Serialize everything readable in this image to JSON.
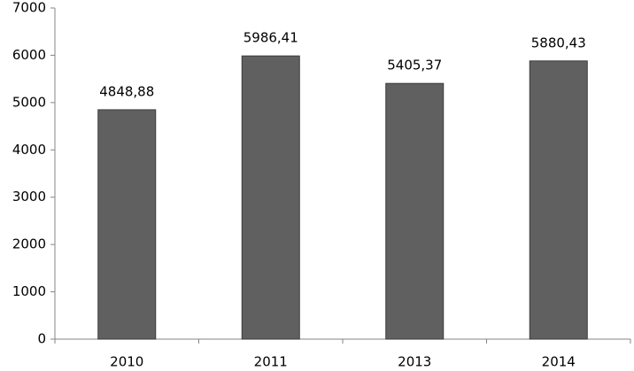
{
  "chart_data": {
    "type": "bar",
    "categories": [
      "2010",
      "2011",
      "2013",
      "2014"
    ],
    "values": [
      4848.88,
      5986.41,
      5405.37,
      5880.43
    ],
    "value_labels": [
      "4848,88",
      "5986,41",
      "5405,37",
      "5880,43"
    ],
    "color": "#606060",
    "ylim": [
      0,
      7000
    ],
    "yticks": [
      0,
      1000,
      2000,
      3000,
      4000,
      5000,
      6000,
      7000
    ],
    "grid": false
  }
}
